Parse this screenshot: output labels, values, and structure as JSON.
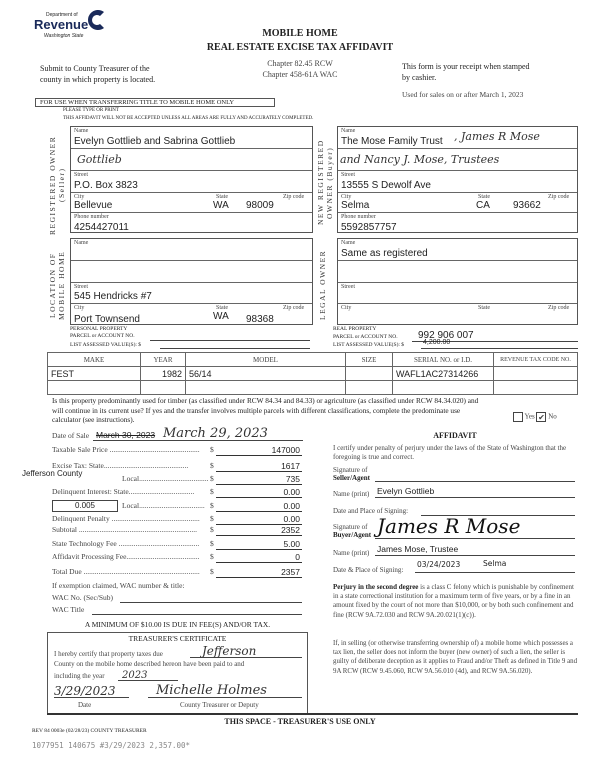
{
  "header": {
    "logo_line1": "Department of",
    "logo_line2": "Revenue",
    "logo_line3": "Washington State",
    "title1": "MOBILE HOME",
    "title2": "REAL ESTATE EXCISE TAX AFFIDAVIT",
    "chapter1": "Chapter 82.45 RCW",
    "chapter2": "Chapter 458-61A WAC",
    "submit_line1": "Submit to County Treasurer of the",
    "submit_line2": "county in which property is located.",
    "receipt_line1": "This form is your receipt when stamped",
    "receipt_line2": "by cashier.",
    "used_for": "Used for sales on or after March 1, 2023",
    "for_use": "FOR USE WHEN TRANSFERRING TITLE TO MOBILE HOME ONLY",
    "type_print": "PLEASE TYPE OR PRINT",
    "not_accepted": "THIS AFFIDAVIT WILL NOT BE ACCEPTED UNLESS ALL AREAS ARE FULLY AND ACCURATELY COMPLETED."
  },
  "labels": {
    "name": "Name",
    "street": "Street",
    "city": "City",
    "state": "State",
    "zip": "Zip code",
    "phone": "Phone number"
  },
  "seller": {
    "section": "REGISTERED OWNER (Seller)",
    "name": "Evelyn Gottlieb and Sabrina Gottlieb",
    "signature_scrawl": "Gottlieb",
    "street": "P.O. Box 3823",
    "city": "Bellevue",
    "state": "WA",
    "zip": "98009",
    "phone": "4254427011"
  },
  "buyer": {
    "section": "NEW REGISTERED OWNER (Buyer)",
    "name": "The Mose Family Trust",
    "name_hw1": ", James R Mose",
    "name_hw2": "and Nancy J. Mose, Trustees",
    "street": "13555 S Dewolf Ave",
    "city": "Selma",
    "state": "CA",
    "zip": "93662",
    "phone": "5592857757"
  },
  "location": {
    "section": "LOCATION OF MOBILE HOME",
    "name": "",
    "street": "545 Hendricks #7",
    "city": "Port Townsend",
    "state": "WA",
    "zip": "98368"
  },
  "legal_owner": {
    "section": "LEGAL OWNER",
    "name": "Same as registered",
    "street": "",
    "city": ""
  },
  "parcels": {
    "personal_label": "PERSONAL PROPERTY",
    "parcel_label": "PARCEL or ACCOUNT NO.",
    "assessed_label": "LIST ASSESSED VALUE(S): $",
    "real_label": "REAL PROPERTY",
    "real_parcel": "992 906 007",
    "real_assessed": "4,200.00"
  },
  "home_table": {
    "headers": [
      "MAKE",
      "YEAR",
      "MODEL",
      "SIZE",
      "SERIAL NO. or I.D.",
      "REVENUE TAX CODE NO."
    ],
    "rows": [
      [
        "FEST",
        "1982",
        "56/14",
        "",
        "WAFL1AC27314266",
        ""
      ],
      [
        "",
        "",
        "",
        "",
        "",
        ""
      ]
    ]
  },
  "timber": {
    "question": "Is this property predominantly used for timber (as classified under RCW 84.34 and 84.33) or agriculture (as classified under RCW 84.34.020) and will continue in its current use? If yes and the transfer involves multiple parcels with different classifications, complete the predominate use calculator (see instructions).",
    "yes_label": "Yes",
    "no_label": "No",
    "yes_checked": false,
    "no_checked": true
  },
  "sale": {
    "date_label": "Date of Sale",
    "date_struck": "March 30, 2023",
    "date_hw": "March 29, 2023"
  },
  "fees": [
    {
      "label": "Taxable Sale Price ................................................",
      "value": "147000"
    },
    {
      "label": "Excise Tax:    State.............................................",
      "value": "1617"
    },
    {
      "label": "                   Local...............................................",
      "value": "735"
    },
    {
      "label": "Delinquent Interest:   State...................................",
      "value": "0.00"
    },
    {
      "label": "                           Local...................................",
      "value": "0.00"
    },
    {
      "label": "Delinquent Penalty ...............................................",
      "value": "0.00"
    },
    {
      "label": "Subtotal ...............................................................",
      "value": "2352"
    },
    {
      "label": "State Technology Fee ...........................................",
      "value": "5.00"
    },
    {
      "label": "Affidavit Processing Fee.......................................",
      "value": "0"
    },
    {
      "label": "Total Due ..............................................................",
      "value": "2357"
    }
  ],
  "county_name": "Jefferson County",
  "local_rate": "0.005",
  "exemption": {
    "prompt": "If exemption claimed, WAC number & title:",
    "wac_no": "WAC No. (Sec/Sub)",
    "wac_title": "WAC Title",
    "minimum": "A MINIMUM OF $10.00 IS DUE IN FEE(S) AND/OR TAX."
  },
  "affidavit": {
    "title": "AFFIDAVIT",
    "certify": "I certify under penalty of perjury under the laws of the State of Washington that the foregoing is true and correct.",
    "seller_sig_label1": "Signature of",
    "seller_sig_label2": "Seller/Agent",
    "name_print": "Name (print)",
    "seller_name": "Evelyn Gottlieb",
    "date_place_label": "Date and Place of Signing:",
    "buyer_sig_label1": "Signature of",
    "buyer_sig_label2": "Buyer/Agent",
    "buyer_signature": "James R Mose",
    "buyer_name": "James Mose, Trustee",
    "buyer_date_label": "Date & Place of Signing:",
    "buyer_date": "03/24/2023",
    "buyer_place": "Selma",
    "perjury_bold": "Perjury in the second degree",
    "perjury": " is a class C felony which is punishable by confinement in a state correctional institution for a maximum term of five years, or by a fine in an amount fixed by the court of not more than $10,000, or by both such confinement and fine (RCW 9A.72.030 and RCW 9A.20.021(1)(c)).",
    "lien": "If, in selling (or otherwise transferring ownership of) a mobile home which possesses a tax lien, the seller does not inform the buyer (new owner) of such a lien, the seller is guilty of deliberate deception as it applies to Fraud and/or Theft as defined in Title 9 and 9A RCW (RCW 9.45.060, RCW 9A.56.010 (4d), and RCW 9A.56.020)."
  },
  "treasurer": {
    "title": "TREASURER'S CERTIFICATE",
    "line1": "I hereby certify that property taxes due",
    "county_hw": "Jefferson",
    "line2": "County on the mobile home described hereon have been paid to and",
    "line3": "including the year",
    "year_hw": "2023",
    "date_hw": "3/29/2023",
    "signature": "Michelle Holmes",
    "date_label": "Date",
    "deputy_label": "County Treasurer or Deputy"
  },
  "footer": {
    "use_only": "THIS SPACE - TREASURER'S USE ONLY",
    "rev": "REV 84 0003e (02/28/23) COUNTY TREASURER",
    "stamp": "1077951 140675 #3/29/2023 2,357.00*"
  }
}
